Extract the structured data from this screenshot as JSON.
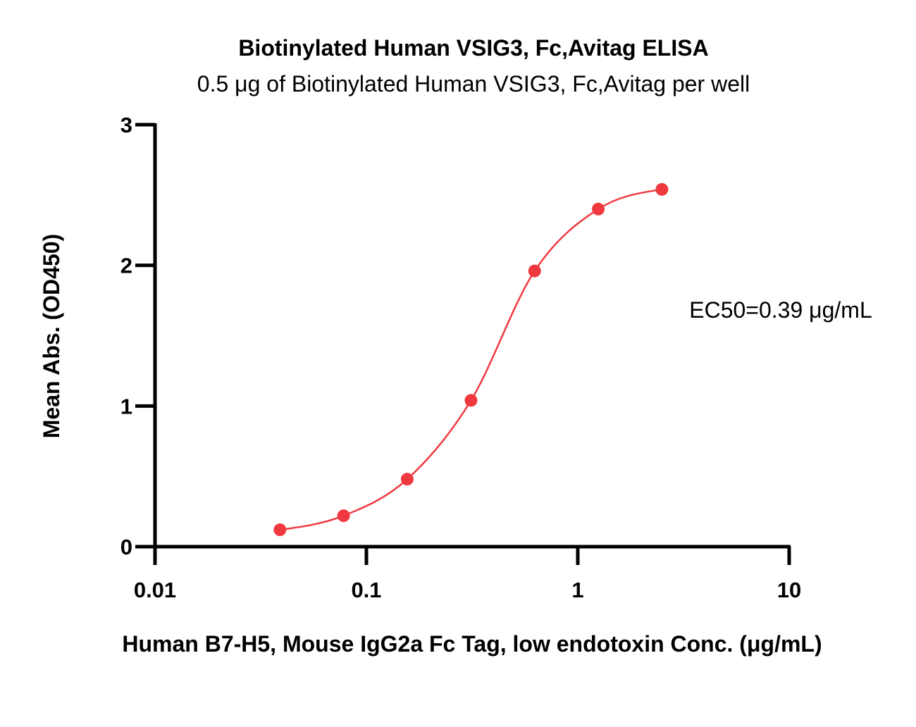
{
  "chart_data": {
    "type": "scatter",
    "title": "Biotinylated Human VSIG3, Fc,Avitag ELISA",
    "subtitle": "0.5 μg of Biotinylated Human VSIG3, Fc,Avitag per well",
    "xlabel": "Human B7-H5, Mouse IgG2a Fc Tag, low endotoxin Conc. (μg/mL)",
    "ylabel": "Mean Abs. (OD450)",
    "x_scale": "log",
    "xlim": [
      0.01,
      10
    ],
    "ylim": [
      0,
      3
    ],
    "x_ticks": [
      0.01,
      0.1,
      1,
      10
    ],
    "x_tick_labels": [
      "0.01",
      "0.1",
      "1",
      "10"
    ],
    "y_ticks": [
      0,
      1,
      2,
      3
    ],
    "y_tick_labels": [
      "0",
      "1",
      "2",
      "3"
    ],
    "grid": false,
    "series": [
      {
        "color": "#f0393f",
        "x": [
          0.039,
          0.078,
          0.156,
          0.3125,
          0.625,
          1.25,
          2.5
        ],
        "y": [
          0.12,
          0.22,
          0.48,
          1.04,
          1.96,
          2.4,
          2.54
        ],
        "fit_curve": true
      }
    ],
    "annotations": [
      {
        "text": "EC50=0.39 μg/mL"
      }
    ]
  }
}
